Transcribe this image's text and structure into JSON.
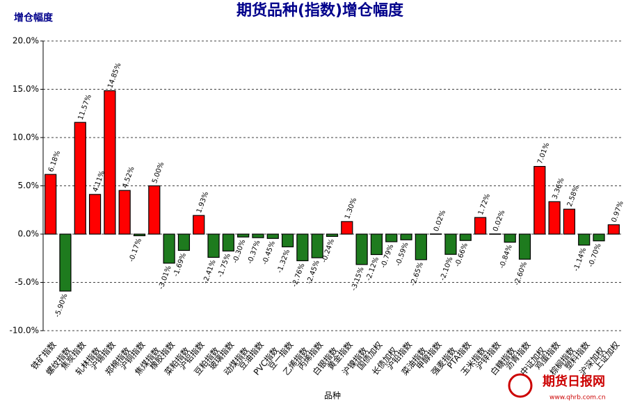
{
  "chart_data": {
    "type": "bar",
    "title": "期货品种(指数)增仓幅度",
    "y_axis_label": "增仓幅度",
    "x_axis_label": "品种",
    "watermark": "期货日报网",
    "watermark_url": "www.qhrb.com.cn",
    "categories": [
      "铁矿指数",
      "螺纹指数",
      "焦炭指数",
      "轧林指数",
      "沪锡指数",
      "郑棉指数",
      "沪铜指数",
      "焦煤指数",
      "橡胶指数",
      "菜粕指数",
      "沪铝指数",
      "豆粕指数",
      "玻璃指数",
      "动煤指数",
      "豆油指数",
      "PVC指数",
      "豆一指数",
      "乙烯指数",
      "丙烯指数",
      "白银指数",
      "黄金指数",
      "沪镍指数",
      "国债加权",
      "长债加权",
      "沪铅指数",
      "菜油指数",
      "甲醇指数",
      "强麦指数",
      "PTA指数",
      "玉米指数",
      "沪锌指数",
      "白糖指数",
      "沥青指数",
      "中证加权",
      "鸡蛋指数",
      "棕榈指数",
      "塑料指数",
      "沪深加权",
      "上证加权"
    ],
    "values": [
      6.18,
      -5.9,
      11.57,
      4.11,
      14.85,
      4.52,
      -0.17,
      5.0,
      -3.01,
      -1.69,
      1.93,
      -2.41,
      -1.75,
      -0.3,
      -0.37,
      -0.45,
      -1.32,
      -2.76,
      -2.45,
      -0.24,
      1.3,
      -3.15,
      -2.12,
      -0.79,
      -0.59,
      -2.65,
      0.02,
      -2.1,
      -0.66,
      1.72,
      0.02,
      -0.84,
      -2.6,
      7.01,
      3.36,
      2.58,
      -1.14,
      -0.7,
      0.97
    ],
    "value_labels": [
      "6.18%",
      "-5.90%",
      "11.57%",
      "4.11%",
      "14.85%",
      "4.52%",
      "-0.17%",
      "5.00%",
      "-3.01%",
      "-1.69%",
      "1.93%",
      "-2.41%",
      "-1.75%",
      "-0.30%",
      "-0.37%",
      "-0.45%",
      "-1.32%",
      "-2.76%",
      "-2.45%",
      "-0.24%",
      "1.30%",
      "-3.15%",
      "-2.12%",
      "-0.79%",
      "-0.59%",
      "-2.65%",
      "0.02%",
      "-2.10%",
      "-0.66%",
      "1.72%",
      "0.02%",
      "-0.84%",
      "-2.60%",
      "7.01%",
      "3.36%",
      "2.58%",
      "-1.14%",
      "-0.70%",
      "0.97%"
    ],
    "positive_color": "#ff0000",
    "negative_color": "#1e7b1e",
    "ylim": [
      -10,
      20
    ],
    "yticks": [
      {
        "value": -10,
        "label": "-10.0%"
      },
      {
        "value": -5,
        "label": "-5.0%"
      },
      {
        "value": 0,
        "label": "0.0%"
      },
      {
        "value": 5,
        "label": "5.0%"
      },
      {
        "value": 10,
        "label": "10.0%"
      },
      {
        "value": 15,
        "label": "15.0%"
      },
      {
        "value": 20,
        "label": "20.0%"
      }
    ],
    "grid": true
  }
}
